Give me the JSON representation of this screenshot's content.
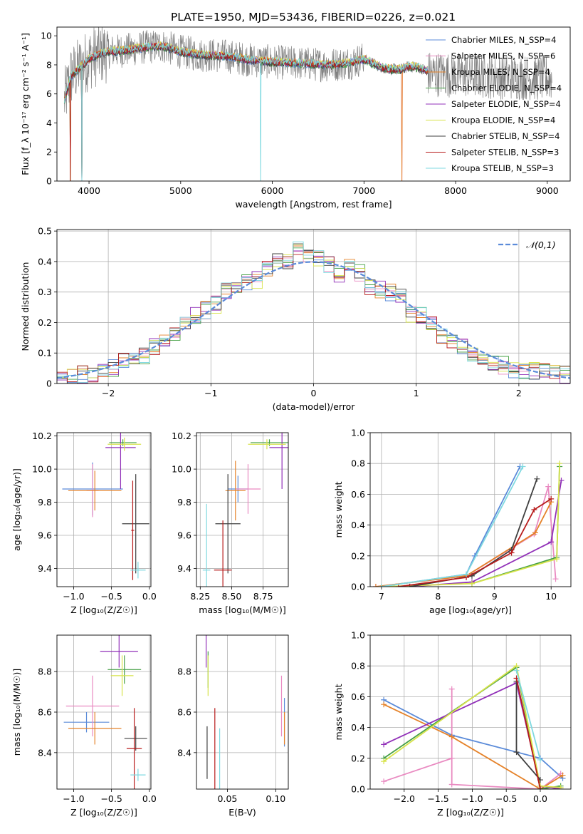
{
  "title": "PLATE=1950, MJD=53436, FIBERID=0226, z=0.021",
  "series_colors": [
    "#5b8bd9",
    "#e98ac1",
    "#e58229",
    "#46a046",
    "#9130b8",
    "#d7e34a",
    "#404040",
    "#b81c1c",
    "#7fd9e0"
  ],
  "chart_data": [
    {
      "id": "spectrum",
      "type": "line",
      "xlabel": "wavelength [Angstrom, rest frame]",
      "ylabel": "Flux [f_λ 10⁻¹⁷ erg cm⁻² s⁻¹ A⁻¹]",
      "xlim": [
        3650,
        9250
      ],
      "ylim": [
        0,
        10.6
      ],
      "xticks": [
        4000,
        5000,
        6000,
        7000,
        8000,
        9000
      ],
      "yticks": [
        0,
        2,
        4,
        6,
        8,
        10
      ],
      "legend_position": "top-right",
      "series": [
        {
          "name": "Chabrier MILES, N_SSP=4"
        },
        {
          "name": "Salpeter MILES, N_SSP=6"
        },
        {
          "name": "Kroupa MILES, N_SSP=4"
        },
        {
          "name": "Chabrier ELODIE, N_SSP=4"
        },
        {
          "name": "Salpeter ELODIE, N_SSP=4"
        },
        {
          "name": "Kroupa ELODIE, N_SSP=4"
        },
        {
          "name": "Chabrier STELIB, N_SSP=4"
        },
        {
          "name": "Salpeter STELIB, N_SSP=3"
        },
        {
          "name": "Kroupa STELIB, N_SSP=3"
        }
      ],
      "model_continuum": {
        "x": [
          3730,
          3800,
          3900,
          4000,
          4100,
          4200,
          4400,
          4600,
          4800,
          5000,
          5200,
          5500,
          5800,
          6000,
          6300,
          6600,
          6800,
          7000,
          7200,
          7300,
          7400,
          7500,
          7600,
          7700
        ],
        "y": [
          5.5,
          7.2,
          7.8,
          8.4,
          8.7,
          8.9,
          9.0,
          9.2,
          9.3,
          8.9,
          8.7,
          8.6,
          8.3,
          8.2,
          8.1,
          8.0,
          8.1,
          8.4,
          7.8,
          7.7,
          7.7,
          7.9,
          7.8,
          7.6
        ]
      },
      "data_range": [
        3730,
        9050
      ]
    },
    {
      "id": "residuals",
      "type": "bar",
      "xlabel": "(data-model)/error",
      "ylabel": "Normed distribution",
      "xlim": [
        -2.5,
        2.5
      ],
      "ylim": [
        0,
        0.505
      ],
      "xticks": [
        -2,
        -1,
        0,
        1,
        2
      ],
      "yticks": [
        0.0,
        0.1,
        0.2,
        0.3,
        0.4,
        0.5
      ],
      "legend": [
        "𝒩(0,1)"
      ],
      "legend_position": "top-right",
      "bin_width": 0.1,
      "bin_start": -2.5,
      "histogram_approx": [
        0.02,
        0.02,
        0.025,
        0.03,
        0.035,
        0.04,
        0.05,
        0.06,
        0.07,
        0.08,
        0.09,
        0.1,
        0.12,
        0.14,
        0.16,
        0.19,
        0.2,
        0.22,
        0.24,
        0.26,
        0.28,
        0.3,
        0.31,
        0.33,
        0.34,
        0.37,
        0.38,
        0.41,
        0.4,
        0.42,
        0.44,
        0.42,
        0.41,
        0.39,
        0.37,
        0.36,
        0.38,
        0.36,
        0.34,
        0.32,
        0.31,
        0.3,
        0.28,
        0.25,
        0.23,
        0.22,
        0.2,
        0.18,
        0.15,
        0.14,
        0.12,
        0.1,
        0.09,
        0.08,
        0.07,
        0.06,
        0.05,
        0.04,
        0.045,
        0.04,
        0.035,
        0.035,
        0.03,
        0.03
      ]
    },
    {
      "id": "age_vs_Z",
      "type": "scatter",
      "xlabel": "Z [log₁₀(Z/Z☉)]",
      "ylabel": "age  [log₁₀(age/yr)]",
      "xlim": [
        -1.22,
        0.02
      ],
      "ylim": [
        9.29,
        10.22
      ],
      "xticks": [
        -1.0,
        -0.5,
        0.0
      ],
      "yticks": [
        9.4,
        9.6,
        9.8,
        10.0,
        10.2
      ],
      "xticklabels": [
        "−1.0",
        "−0.5",
        "0.0"
      ],
      "yticklabels": [
        "9.4",
        "9.6",
        "9.8",
        "10.0",
        "10.2"
      ],
      "points": [
        {
          "x": -0.75,
          "y": 9.88,
          "xerr": 0.4,
          "yerr": 0.16
        },
        {
          "x": -0.75,
          "y": 9.87,
          "xerr": 0.08,
          "yerr": 0.16
        },
        {
          "x": -0.72,
          "y": 9.87,
          "xerr": 0.35,
          "yerr": 0.12
        },
        {
          "x": -0.35,
          "y": 10.16,
          "xerr": 0.18,
          "yerr": 0.02
        },
        {
          "x": -0.38,
          "y": 10.13,
          "xerr": 0.2,
          "yerr": 0.25
        },
        {
          "x": -0.33,
          "y": 10.15,
          "xerr": 0.22,
          "yerr": 0.04
        },
        {
          "x": -0.18,
          "y": 9.67,
          "xerr": 0.18,
          "yerr": 0.3
        },
        {
          "x": -0.22,
          "y": 9.63,
          "xerr": 0.02,
          "yerr": 0.3
        },
        {
          "x": -0.15,
          "y": 9.39,
          "xerr": 0.1,
          "yerr": 0.05
        }
      ]
    },
    {
      "id": "age_vs_mass",
      "type": "scatter",
      "xlabel": "mass [log₁₀(M/M☉)]",
      "ylabel": "",
      "xlim": [
        8.22,
        8.95
      ],
      "ylim": [
        9.29,
        10.22
      ],
      "xticks": [
        8.25,
        8.5,
        8.75
      ],
      "yticks": [
        9.4,
        9.6,
        9.8,
        10.0,
        10.2
      ],
      "xticklabels": [
        "8.25",
        "8.50",
        "8.75"
      ],
      "yticklabels": [
        "9.4",
        "9.6",
        "9.8",
        "10.0",
        "10.2"
      ],
      "points": [
        {
          "x": 8.55,
          "y": 9.88,
          "xerr": 0.08,
          "yerr": 0.08
        },
        {
          "x": 8.63,
          "y": 9.88,
          "xerr": 0.1,
          "yerr": 0.15
        },
        {
          "x": 8.53,
          "y": 9.87,
          "xerr": 0.08,
          "yerr": 0.18
        },
        {
          "x": 8.8,
          "y": 10.16,
          "xerr": 0.15,
          "yerr": 0.02
        },
        {
          "x": 8.9,
          "y": 10.13,
          "xerr": 0.1,
          "yerr": 0.25
        },
        {
          "x": 8.78,
          "y": 10.15,
          "xerr": 0.15,
          "yerr": 0.03
        },
        {
          "x": 8.47,
          "y": 9.67,
          "xerr": 0.1,
          "yerr": 0.3
        },
        {
          "x": 8.43,
          "y": 9.39,
          "xerr": 0.07,
          "yerr": 0.3
        },
        {
          "x": 8.3,
          "y": 9.39,
          "xerr": 0.03,
          "yerr": 0.4
        }
      ]
    },
    {
      "id": "weight_vs_age",
      "type": "line",
      "xlabel": "age  [log₁₀(age/yr)]",
      "ylabel": "mass weight",
      "xlim": [
        6.8,
        10.35
      ],
      "ylim": [
        0,
        1.0
      ],
      "xticks": [
        7,
        8,
        9,
        10
      ],
      "yticks": [
        0.0,
        0.2,
        0.4,
        0.6,
        0.8,
        1.0
      ],
      "xticklabels": [
        "7",
        "8",
        "9",
        "10"
      ],
      "yticklabels": [
        "0.0",
        "0.2",
        "0.4",
        "0.6",
        "0.8",
        "1.0"
      ],
      "series": [
        {
          "x": [
            7.0,
            8.5,
            8.65,
            9.45
          ],
          "y": [
            0.0,
            0.08,
            0.2,
            0.78
          ]
        },
        {
          "x": [
            6.9,
            8.5,
            9.7,
            9.95,
            10.08
          ],
          "y": [
            0.0,
            0.07,
            0.34,
            0.65,
            0.05
          ]
        },
        {
          "x": [
            6.9,
            8.5,
            9.72,
            10.0
          ],
          "y": [
            0.0,
            0.07,
            0.35,
            0.55
          ]
        },
        {
          "x": [
            8.6,
            10.1,
            10.15
          ],
          "y": [
            0.02,
            0.19,
            0.78
          ]
        },
        {
          "x": [
            7.5,
            8.6,
            10.0,
            10.18
          ],
          "y": [
            0.0,
            0.03,
            0.29,
            0.69
          ]
        },
        {
          "x": [
            7.0,
            8.6,
            10.1,
            10.15
          ],
          "y": [
            0.0,
            0.02,
            0.18,
            0.8
          ]
        },
        {
          "x": [
            7.5,
            8.6,
            9.3,
            9.75
          ],
          "y": [
            0.0,
            0.07,
            0.24,
            0.7
          ]
        },
        {
          "x": [
            7.3,
            8.5,
            9.3,
            9.7,
            10.0
          ],
          "y": [
            0.0,
            0.06,
            0.22,
            0.5,
            0.57
          ]
        },
        {
          "x": [
            7.0,
            8.5,
            9.5
          ],
          "y": [
            0.0,
            0.08,
            0.78
          ]
        }
      ]
    },
    {
      "id": "mass_vs_Z",
      "type": "scatter",
      "xlabel": "Z [log₁₀(Z/Z☉)]",
      "ylabel": "mass [log₁₀(M/M☉)]",
      "xlim": [
        -1.22,
        0.02
      ],
      "ylim": [
        8.22,
        8.98
      ],
      "xticks": [
        -1.0,
        -0.5,
        0.0
      ],
      "yticks": [
        8.4,
        8.6,
        8.8
      ],
      "xticklabels": [
        "−1.0",
        "−0.5",
        "0.0"
      ],
      "yticklabels": [
        "8.4",
        "8.6",
        "8.8"
      ],
      "points": [
        {
          "x": -0.83,
          "y": 8.55,
          "xerr": 0.3,
          "yerr": 0.05
        },
        {
          "x": -0.75,
          "y": 8.63,
          "xerr": 0.35,
          "yerr": 0.15
        },
        {
          "x": -0.72,
          "y": 8.52,
          "xerr": 0.35,
          "yerr": 0.08
        },
        {
          "x": -0.33,
          "y": 8.81,
          "xerr": 0.22,
          "yerr": 0.07
        },
        {
          "x": -0.4,
          "y": 8.9,
          "xerr": 0.25,
          "yerr": 0.08
        },
        {
          "x": -0.36,
          "y": 8.78,
          "xerr": 0.15,
          "yerr": 0.1
        },
        {
          "x": -0.18,
          "y": 8.47,
          "xerr": 0.15,
          "yerr": 0.06
        },
        {
          "x": -0.2,
          "y": 8.42,
          "xerr": 0.1,
          "yerr": 0.2
        },
        {
          "x": -0.15,
          "y": 8.29,
          "xerr": 0.1,
          "yerr": 0.03
        }
      ]
    },
    {
      "id": "mass_vs_ebv",
      "type": "scatter",
      "xlabel": "E(B-V)",
      "ylabel": "",
      "xlim": [
        0.018,
        0.113
      ],
      "ylim": [
        8.22,
        8.98
      ],
      "xticks": [
        0.05,
        0.1
      ],
      "yticks": [
        8.4,
        8.6,
        8.8
      ],
      "xticklabels": [
        "0.05",
        "0.10"
      ],
      "yticklabels": [
        "8.4",
        "8.6",
        "8.8"
      ],
      "points": [
        {
          "x": 0.109,
          "y": 8.55,
          "xerr": 0.0,
          "yerr": 0.12
        },
        {
          "x": 0.106,
          "y": 8.63,
          "xerr": 0.0,
          "yerr": 0.15
        },
        {
          "x": 0.109,
          "y": 8.52,
          "xerr": 0.0,
          "yerr": 0.08
        },
        {
          "x": 0.03,
          "y": 8.81,
          "xerr": 0.0,
          "yerr": 0.09
        },
        {
          "x": 0.028,
          "y": 8.9,
          "xerr": 0.0,
          "yerr": 0.08
        },
        {
          "x": 0.03,
          "y": 8.78,
          "xerr": 0.0,
          "yerr": 0.1
        },
        {
          "x": 0.029,
          "y": 8.4,
          "xerr": 0.0,
          "yerr": 0.13
        },
        {
          "x": 0.037,
          "y": 8.42,
          "xerr": 0.0,
          "yerr": 0.2
        },
        {
          "x": 0.042,
          "y": 8.37,
          "xerr": 0.0,
          "yerr": 0.15
        }
      ]
    },
    {
      "id": "weight_vs_Z",
      "type": "line",
      "xlabel": "Z [log₁₀(Z/Z☉)]",
      "ylabel": "mass weight",
      "xlim": [
        -2.5,
        0.45
      ],
      "ylim": [
        0,
        1.0
      ],
      "xticks": [
        -2.0,
        -1.5,
        -1.0,
        -0.5,
        0.0
      ],
      "yticks": [
        0.0,
        0.2,
        0.4,
        0.6,
        0.8,
        1.0
      ],
      "xticklabels": [
        "−2.0",
        "−1.5",
        "−1.0",
        "−0.5",
        "0.0"
      ],
      "yticklabels": [
        "0.0",
        "0.2",
        "0.4",
        "0.6",
        "0.8",
        "1.0"
      ],
      "series": [
        {
          "x": [
            -2.3,
            -1.3,
            0.0,
            0.33
          ],
          "y": [
            0.58,
            0.35,
            0.2,
            0.07
          ]
        },
        {
          "x": [
            -2.3,
            -1.3,
            -1.3,
            -1.3,
            0.0,
            0.3
          ],
          "y": [
            0.05,
            0.2,
            0.65,
            0.03,
            0.0,
            0.1
          ]
        },
        {
          "x": [
            -2.3,
            -1.3,
            0.0,
            0.33
          ],
          "y": [
            0.55,
            0.34,
            0.0,
            0.09
          ]
        },
        {
          "x": [
            -2.3,
            -0.35,
            0.0,
            0.3
          ],
          "y": [
            0.2,
            0.79,
            0.0,
            0.02
          ]
        },
        {
          "x": [
            -2.3,
            -0.35,
            0.0,
            0.3
          ],
          "y": [
            0.29,
            0.69,
            0.02,
            0.0
          ]
        },
        {
          "x": [
            -2.3,
            -0.35,
            0.0,
            0.3
          ],
          "y": [
            0.18,
            0.8,
            0.02,
            0.01
          ]
        },
        {
          "x": [
            -0.35,
            -0.35,
            0.0
          ],
          "y": [
            0.7,
            0.24,
            0.06
          ]
        },
        {
          "x": [
            -0.35,
            0.0
          ],
          "y": [
            0.72,
            0.0
          ]
        },
        {
          "x": [
            -0.35,
            0.0
          ],
          "y": [
            0.77,
            0.19
          ]
        }
      ]
    }
  ]
}
